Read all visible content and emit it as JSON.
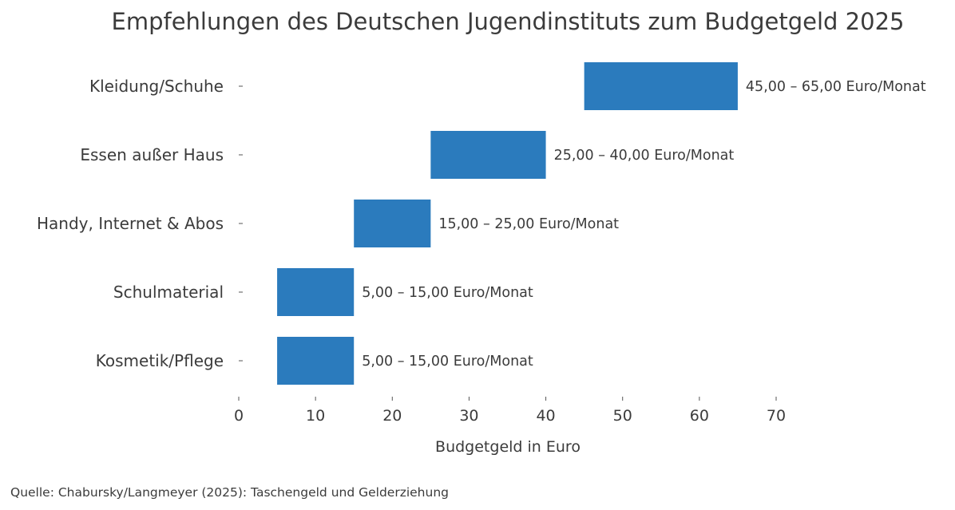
{
  "chart_data": {
    "type": "bar",
    "orientation": "horizontal",
    "subtype": "floating-range",
    "title": "Empfehlungen des Deutschen Jugendinstituts zum Budgetgeld 2025",
    "xlabel": "Budgetgeld in Euro",
    "ylabel": "",
    "xlim": [
      0,
      70
    ],
    "xticks": [
      0,
      10,
      20,
      30,
      40,
      50,
      60,
      70
    ],
    "grid": false,
    "categories": [
      "Kleidung/Schuhe",
      "Essen außer Haus",
      "Handy, Internet & Abos",
      "Schulmaterial",
      "Kosmetik/Pflege"
    ],
    "series": [
      {
        "name": "Empfohlener Bereich",
        "color": "#2b7bbd",
        "ranges": [
          [
            45,
            65
          ],
          [
            25,
            40
          ],
          [
            15,
            25
          ],
          [
            5,
            15
          ],
          [
            5,
            15
          ]
        ],
        "labels": [
          "45,00 – 65,00 Euro/Monat",
          "25,00 – 40,00 Euro/Monat",
          "15,00 – 25,00 Euro/Monat",
          "5,00 – 15,00 Euro/Monat",
          "5,00 – 15,00 Euro/Monat"
        ]
      }
    ],
    "source": "Quelle: Chabursky/Langmeyer (2025): Taschengeld und Gelderziehung"
  },
  "colors": {
    "bar": "#2b7bbd",
    "text": "#3b3b3b"
  }
}
